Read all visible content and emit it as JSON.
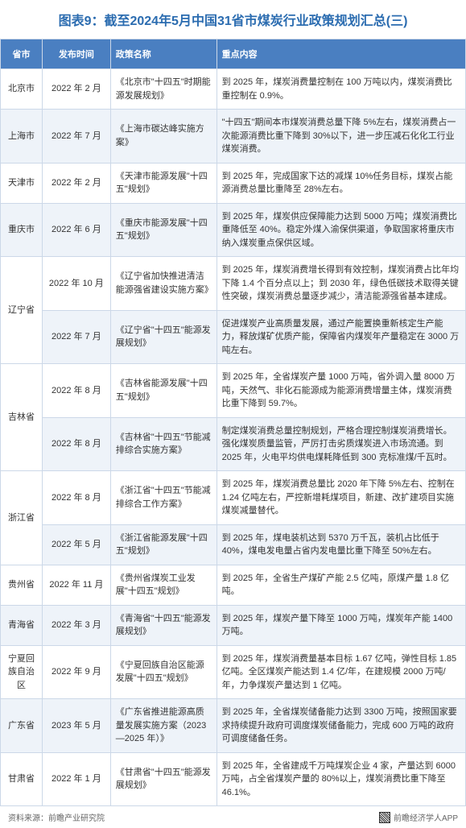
{
  "title": "图表9：截至2024年5月中国31省市煤炭行业政策规划汇总(三)",
  "headers": {
    "province": "省市",
    "date": "发布时间",
    "policy": "政策名称",
    "content": "重点内容"
  },
  "rows": [
    {
      "province": "北京市",
      "date": "2022 年 2 月",
      "policy": "《北京市\"十四五\"时期能源发展规划》",
      "content": "到 2025 年，煤炭消费量控制在 100 万吨以内，煤炭消费比重控制在 0.9%。",
      "rowspan": 1
    },
    {
      "province": "上海市",
      "date": "2022 年 7 月",
      "policy": "《上海市碳达峰实施方案》",
      "content": "\"十四五\"期间本市煤炭消费总量下降 5%左右，煤炭消费占一次能源消费比重下降到 30%以下，进一步压减石化化工行业煤炭消费。",
      "rowspan": 1
    },
    {
      "province": "天津市",
      "date": "2022 年 2 月",
      "policy": "《天津市能源发展\"十四五\"规划》",
      "content": "到 2025 年，完成国家下达的减煤 10%任务目标，煤炭占能源消费总量比重降至 28%左右。",
      "rowspan": 1
    },
    {
      "province": "重庆市",
      "date": "2022 年 6 月",
      "policy": "《重庆市能源发展\"十四五\"规划》",
      "content": "到 2025 年，煤炭供应保障能力达到 5000 万吨；煤炭消费比重降低至 40%。稳定外煤入渝保供渠道，争取国家将重庆市纳入煤炭重点保供区域。",
      "rowspan": 1
    },
    {
      "province": "辽宁省",
      "date": "2022 年 10 月",
      "policy": "《辽宁省加快推进清洁能源强省建设实施方案》",
      "content": "到 2025 年，煤炭消费增长得到有效控制，煤炭消费占比年均下降 1.4 个百分点以上；到 2030 年，绿色低碳技术取得关键性突破，煤炭消费总量逐步减少，清洁能源强省基本建成。",
      "rowspan": 2
    },
    {
      "province": "",
      "date": "2022 年 7 月",
      "policy": "《辽宁省\"十四五\"能源发展规划》",
      "content": "促进煤炭产业高质量发展，通过产能置换重新核定生产能力，释放煤矿优质产能，保障省内煤炭年产量稳定在 3000 万吨左右。",
      "rowspan": 0
    },
    {
      "province": "吉林省",
      "date": "2022 年 8 月",
      "policy": "《吉林省能源发展\"十四五\"规划》",
      "content": "到 2025 年，全省煤炭产量 1000 万吨，省外调入量 8000 万吨，天然气、非化石能源成为能源消费增量主体，煤炭消费比重下降到 59.7%。",
      "rowspan": 2
    },
    {
      "province": "",
      "date": "2022 年 8 月",
      "policy": "《吉林省\"十四五\"节能减排综合实施方案》",
      "content": "制定煤炭消费总量控制规划，严格合理控制煤炭消费增长。强化煤炭质量监管，严厉打击劣质煤炭进入市场流通。到 2025 年，火电平均供电煤耗降低到 300 克标准煤/千瓦时。",
      "rowspan": 0
    },
    {
      "province": "浙江省",
      "date": "2022 年 8 月",
      "policy": "《浙江省\"十四五\"节能减排综合工作方案》",
      "content": "到 2025 年，煤炭消费总量比 2020 年下降 5%左右、控制在 1.24 亿吨左右，严控新增耗煤项目，新建、改扩建项目实施煤炭减量替代。",
      "rowspan": 2
    },
    {
      "province": "",
      "date": "2022 年 5 月",
      "policy": "《浙江省能源发展\"十四五\"规划》",
      "content": "到 2025 年，煤电装机达到 5370 万千瓦，装机占比低于 40%，煤电发电量占省内发电量比重下降至 50%左右。",
      "rowspan": 0
    },
    {
      "province": "贵州省",
      "date": "2022 年 11 月",
      "policy": "《贵州省煤炭工业发展\"十四五\"规划》",
      "content": "到 2025 年，全省生产煤矿产能 2.5 亿吨，原煤产量 1.8 亿吨。",
      "rowspan": 1
    },
    {
      "province": "青海省",
      "date": "2022 年 3 月",
      "policy": "《青海省\"十四五\"能源发展规划》",
      "content": "到 2025 年，煤炭产量下降至 1000 万吨，煤炭年产能 1400 万吨。",
      "rowspan": 1
    },
    {
      "province": "宁夏回族自治区",
      "date": "2022 年 9 月",
      "policy": "《宁夏回族自治区能源发展\"十四五\"规划》",
      "content": "到 2025 年，煤炭消费量基本目标 1.67 亿吨，弹性目标 1.85 亿吨。全区煤炭产能达到 1.4 亿/年，在建规模 2000 万吨/年，力争煤炭产量达到 1 亿吨。",
      "rowspan": 1
    },
    {
      "province": "广东省",
      "date": "2023 年 5 月",
      "policy": "《广东省推进能源高质量发展实施方案（2023—2025 年）》",
      "content": "到 2025 年，全省煤炭储备能力达到 3300 万吨，按照国家要求持续提升政府可调度煤炭储备能力，完成 600 万吨的政府可调度储备任务。",
      "rowspan": 1
    },
    {
      "province": "甘肃省",
      "date": "2022 年 1 月",
      "policy": "《甘肃省\"十四五\"能源发展规划》",
      "content": "到 2025 年，全省建成千万吨煤炭企业 4 家，产量达到 6000 万吨，占全省煤炭产量的 80%以上，煤炭消费比重下降至 46.1%。",
      "rowspan": 1
    }
  ],
  "footer": {
    "source": "资料来源：前瞻产业研究院",
    "right": "前瞻经济学人APP"
  },
  "colors": {
    "header_bg": "#4a7fc1",
    "header_text": "#ffffff",
    "title_color": "#2b6cb0",
    "border": "#ccd8e8",
    "row_odd": "#ffffff",
    "row_even": "#eef3f9"
  }
}
